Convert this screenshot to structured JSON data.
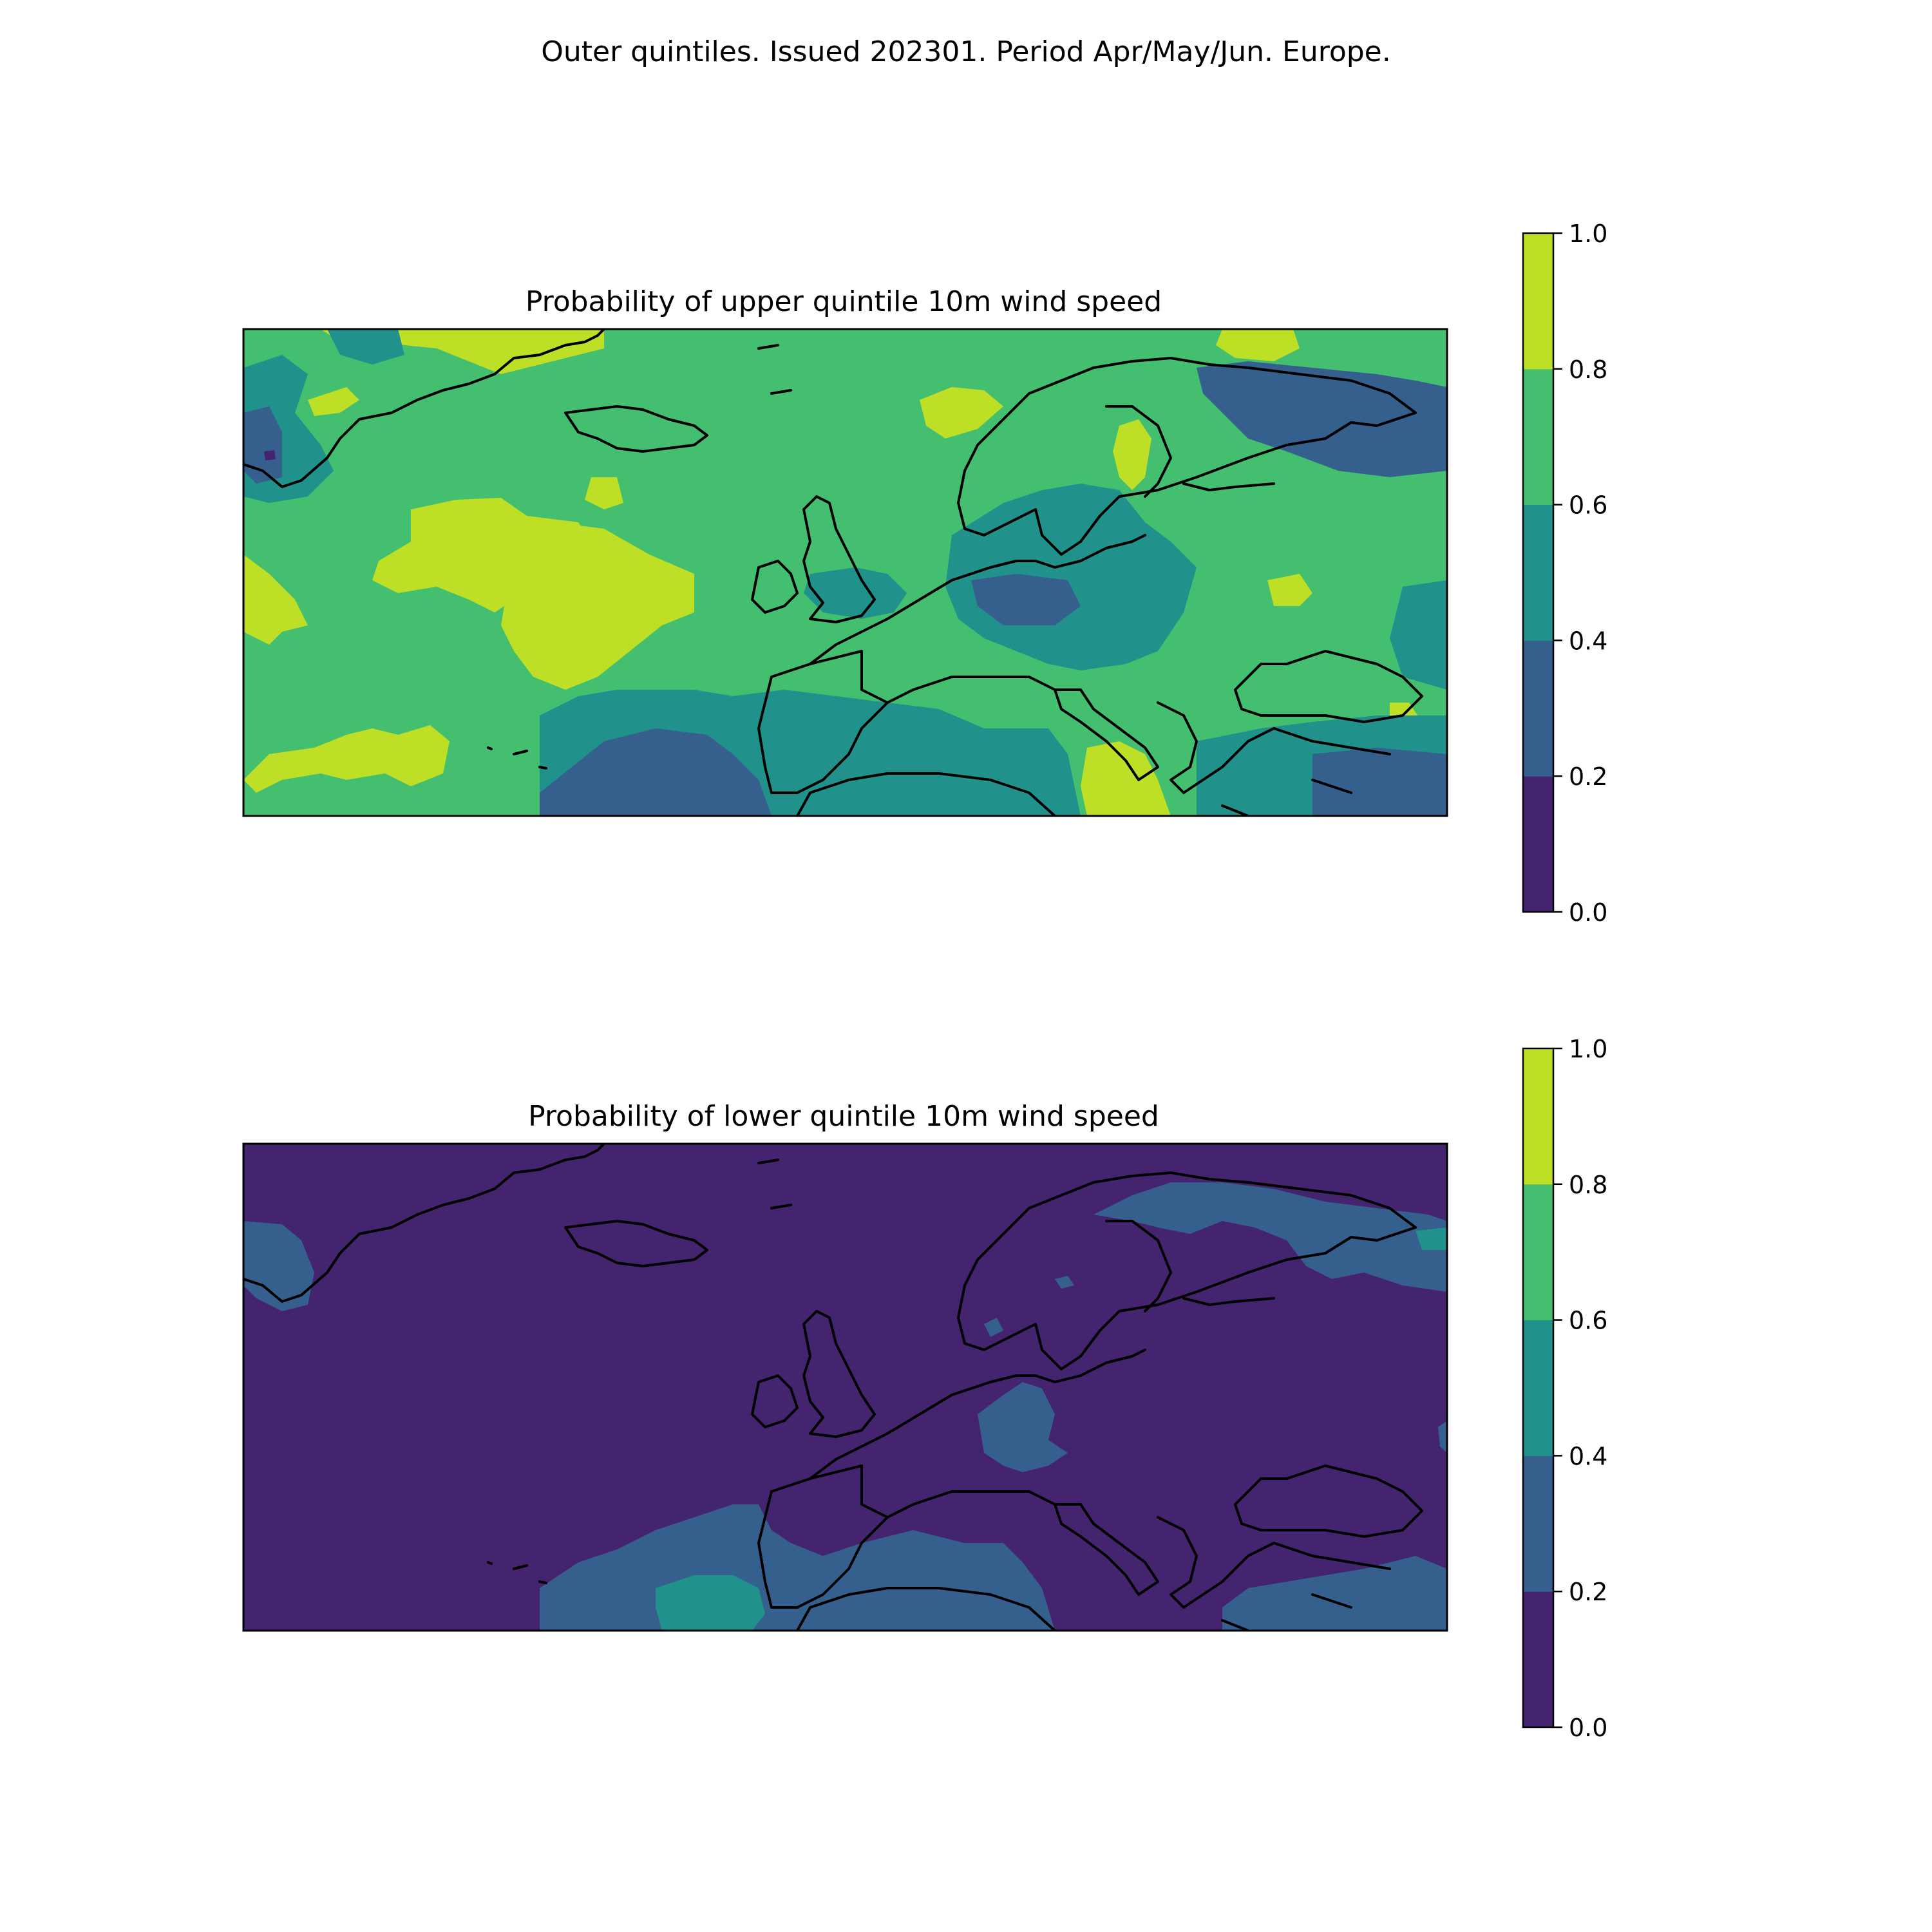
{
  "suptitle": "Outer quintiles. Issued 202301. Period Apr/May/Jun. Europe.",
  "levels": [
    0.0,
    0.2,
    0.4,
    0.6,
    0.8,
    1.0
  ],
  "level_colors": [
    "#440154",
    "#414487",
    "#2a788e",
    "#22a884",
    "#7ad151",
    "#fde725"
  ],
  "display_colors": [
    "#45246f",
    "#355f8d",
    "#21918c",
    "#44bf70",
    "#bddf26"
  ],
  "colorbar": {
    "tick_labels": [
      "0.0",
      "0.2",
      "0.4",
      "0.6",
      "0.8",
      "1.0"
    ]
  },
  "panels": [
    {
      "title": "Probability of upper quintile 10m wind speed",
      "background_level": 3,
      "regions": [
        {
          "level": 4,
          "area": "western Atlantic patch south of Greenland"
        },
        {
          "level": 4,
          "area": "central Atlantic west of Ireland"
        },
        {
          "level": 4,
          "area": "far-west Atlantic edge"
        },
        {
          "level": 4,
          "area": "southwest Atlantic near Azores"
        },
        {
          "level": 4,
          "area": "Norwegian Sea coast"
        },
        {
          "level": 4,
          "area": "central Sweden"
        },
        {
          "level": 4,
          "area": "Greece"
        },
        {
          "level": 4,
          "area": "northwest Russia"
        },
        {
          "level": 4,
          "area": "Caspian/Caucasus"
        },
        {
          "level": 2,
          "area": "North Sea and Baltic belt"
        },
        {
          "level": 2,
          "area": "Iberia, western Mediterranean and North Africa"
        },
        {
          "level": 2,
          "area": "Eastern Turkey"
        },
        {
          "level": 2,
          "area": "East Greenland coast"
        },
        {
          "level": 1,
          "area": "Barents/White Sea region"
        },
        {
          "level": 1,
          "area": "Eastern Atlantic off Africa"
        },
        {
          "level": 1,
          "area": "Middle East"
        },
        {
          "level": 0,
          "area": "southeast Greenland spot"
        }
      ]
    },
    {
      "title": "Probability of lower quintile 10m wind speed",
      "background_level": 0,
      "regions": [
        {
          "level": 1,
          "area": "southeast Greenland coast"
        },
        {
          "level": 1,
          "area": "northern Scandinavia and Kola"
        },
        {
          "level": 1,
          "area": "North Sea and western Europe"
        },
        {
          "level": 1,
          "area": "Eastern Atlantic, Morocco and North Africa"
        },
        {
          "level": 1,
          "area": "Middle East"
        },
        {
          "level": 2,
          "area": "Atlantic off Morocco"
        },
        {
          "level": 2,
          "area": "Barents Sea edge"
        }
      ]
    }
  ],
  "chart_data": [
    {
      "type": "heatmap",
      "title": "Probability of upper quintile 10m wind speed",
      "xlabel": "",
      "ylabel": "",
      "levels": [
        0.0,
        0.2,
        0.4,
        0.6,
        0.8,
        1.0
      ],
      "dominant_band": "0.6-0.8",
      "grid": false,
      "legend": "colorbar right"
    },
    {
      "type": "heatmap",
      "title": "Probability of lower quintile 10m wind speed",
      "xlabel": "",
      "ylabel": "",
      "levels": [
        0.0,
        0.2,
        0.4,
        0.6,
        0.8,
        1.0
      ],
      "dominant_band": "0.0-0.2",
      "grid": false,
      "legend": "colorbar right"
    }
  ]
}
